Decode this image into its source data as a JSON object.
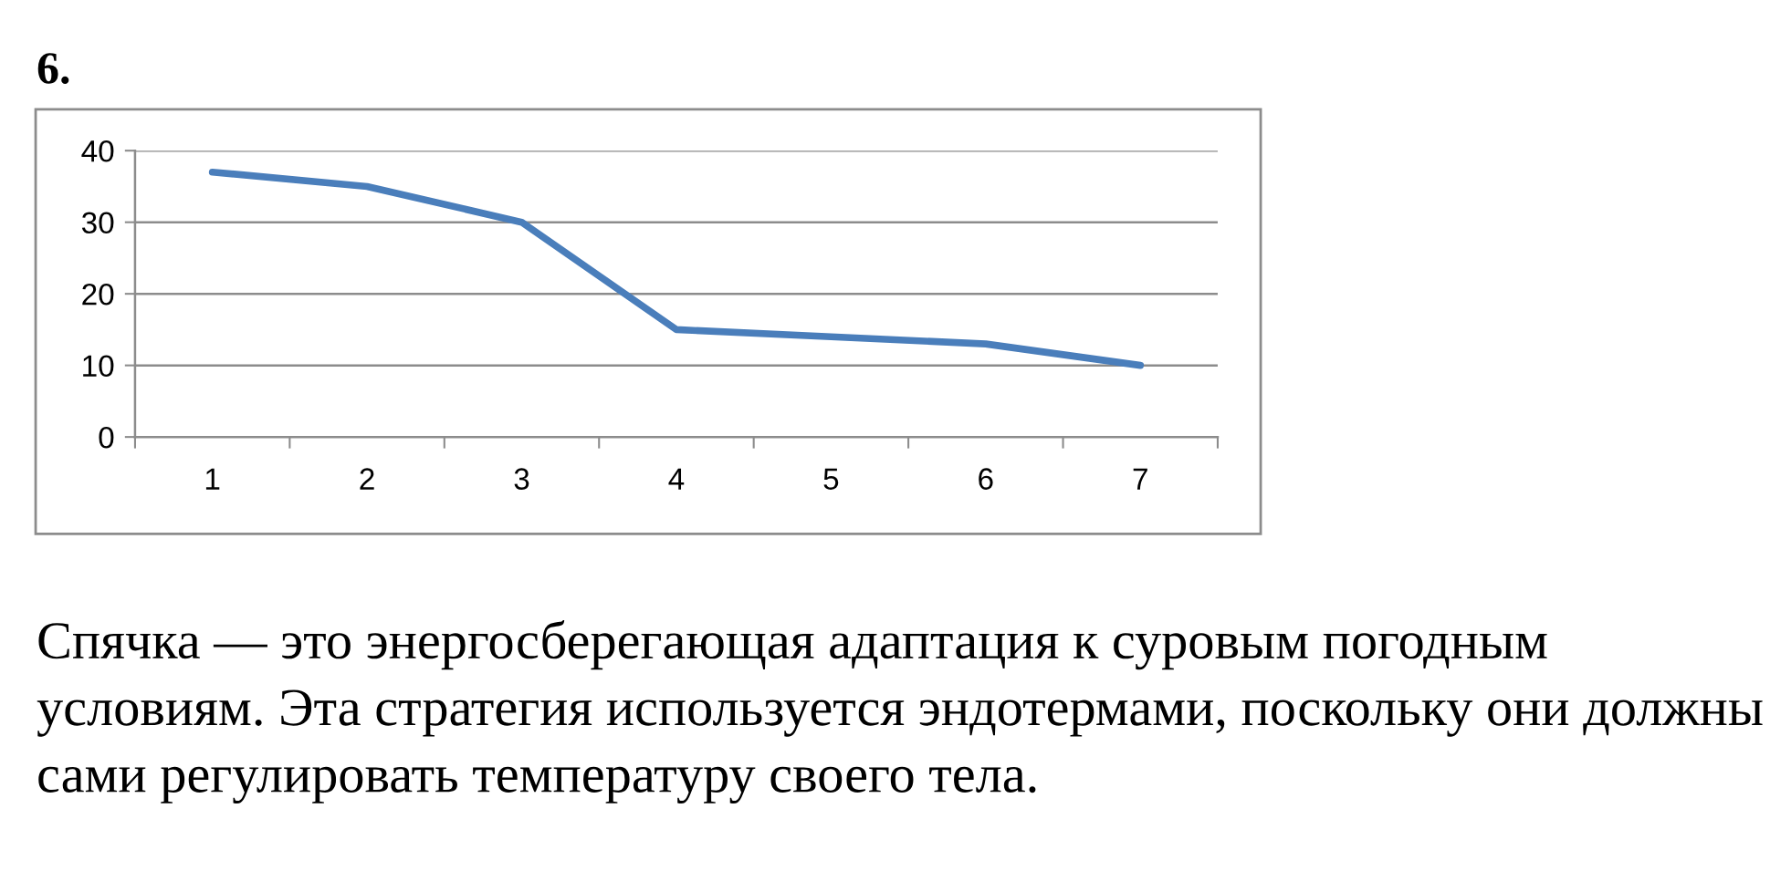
{
  "chart_data": {
    "type": "line",
    "title": "6.",
    "categories": [
      "1",
      "2",
      "3",
      "4",
      "5",
      "6",
      "7"
    ],
    "values": [
      37,
      35,
      30,
      15,
      14,
      13,
      10
    ],
    "color": "#4a7ebb",
    "ylim": [
      0,
      40
    ],
    "yticks": [
      0,
      10,
      20,
      30,
      40
    ],
    "grid": "y",
    "marker": "none",
    "line_style": "solid",
    "annotations": [
      "Спячка — это энергосберегающая адаптация к суровым погодным условиям. Эта стратегия используется эндотермами, поскольку они должны сами регулировать температуру своего тела."
    ]
  }
}
